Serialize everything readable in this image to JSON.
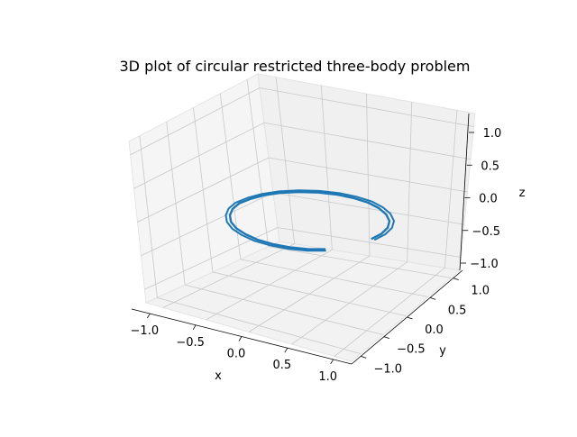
{
  "chart_data": {
    "type": "line",
    "projection": "3d",
    "title": "3D plot of circular restricted three-body problem",
    "xlabel": "x",
    "ylabel": "y",
    "zlabel": "z",
    "xlim": [
      -1.2,
      1.2
    ],
    "ylim": [
      -1.2,
      1.2
    ],
    "zlim": [
      -1.2,
      1.2
    ],
    "grid": true,
    "xticks": [
      "−1.0",
      "−0.5",
      "0.0",
      "0.5",
      "1.0"
    ],
    "yticks": [
      "−1.0",
      "−0.5",
      "0.0",
      "0.5",
      "1.0"
    ],
    "zticks": [
      "−1.0",
      "−0.5",
      "0.0",
      "0.5",
      "1.0"
    ],
    "series": [
      {
        "name": "",
        "color": "#1f77b4",
        "description": "three-dimensional trajectory spiraling slowly in the z ≈ 0 plane",
        "points": [
          [
            0.75,
            0.0,
            0.0
          ],
          [
            0.74,
            0.2,
            0.0
          ],
          [
            0.69,
            0.39,
            0.0
          ],
          [
            0.6,
            0.56,
            0.0
          ],
          [
            0.47,
            0.7,
            0.0
          ],
          [
            0.32,
            0.8,
            0.0
          ],
          [
            0.16,
            0.86,
            0.0
          ],
          [
            -0.02,
            0.87,
            0.0
          ],
          [
            -0.19,
            0.84,
            0.0
          ],
          [
            -0.36,
            0.76,
            0.0
          ],
          [
            -0.51,
            0.64,
            0.0
          ],
          [
            -0.63,
            0.49,
            0.0
          ],
          [
            -0.71,
            0.32,
            0.0
          ],
          [
            -0.75,
            0.14,
            0.0
          ],
          [
            -0.76,
            -0.05,
            0.0
          ],
          [
            -0.72,
            -0.23,
            0.0
          ],
          [
            -0.64,
            -0.4,
            0.0
          ],
          [
            -0.53,
            -0.55,
            0.0
          ],
          [
            -0.39,
            -0.67,
            0.0
          ],
          [
            -0.23,
            -0.75,
            0.0
          ],
          [
            -0.06,
            -0.8,
            0.0
          ],
          [
            0.12,
            -0.8,
            0.0
          ],
          [
            0.29,
            -0.76,
            0.0
          ],
          [
            0.45,
            -0.68,
            0.0
          ],
          [
            0.58,
            -0.56,
            0.0
          ]
        ]
      }
    ]
  }
}
